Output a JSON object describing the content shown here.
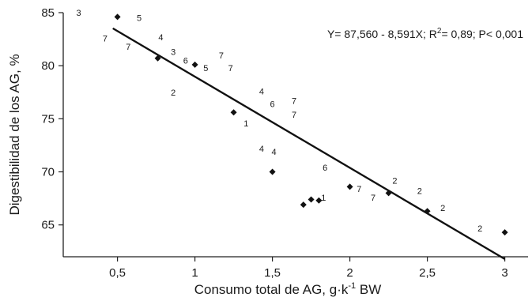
{
  "chart_data": {
    "type": "scatter",
    "xlabel": "Consumo total de AG, g·k-1 BW",
    "xlabel_parts": {
      "main": "Consumo total de AG, g·k",
      "sup": "-1",
      "tail": " BW"
    },
    "ylabel": "Digestibilidad de los AG, %",
    "xlim": [
      0.15,
      3.15
    ],
    "ylim": [
      62,
      85
    ],
    "x_ticks": [
      0.5,
      1,
      1.5,
      2,
      2.5,
      3
    ],
    "x_tick_labels": [
      "0,5",
      "1",
      "1,5",
      "2",
      "2,5",
      "3"
    ],
    "y_ticks": [
      65,
      70,
      75,
      80,
      85
    ],
    "y_tick_labels": [
      "65",
      "70",
      "75",
      "80",
      "85"
    ],
    "grid": false,
    "equation": "Y= 87,560 - 8,591X;  R",
    "equation_sup": "2",
    "equation_tail": "= 0,89;  P< 0,001",
    "regression": {
      "intercept": 87.56,
      "slope": -8.591,
      "x_range": [
        0.47,
        3.0
      ]
    },
    "points": [
      {
        "x": 0.5,
        "y": 84.6
      },
      {
        "x": 0.76,
        "y": 80.7
      },
      {
        "x": 1.0,
        "y": 80.1
      },
      {
        "x": 1.25,
        "y": 75.6
      },
      {
        "x": 1.5,
        "y": 70.0
      },
      {
        "x": 1.7,
        "y": 66.9
      },
      {
        "x": 1.75,
        "y": 67.4
      },
      {
        "x": 1.8,
        "y": 67.3
      },
      {
        "x": 2.0,
        "y": 68.6
      },
      {
        "x": 2.25,
        "y": 68.0
      },
      {
        "x": 2.5,
        "y": 66.3
      },
      {
        "x": 3.0,
        "y": 64.3
      }
    ],
    "point_labels": [
      {
        "x": 0.25,
        "y": 84.7,
        "text": "3"
      },
      {
        "x": 0.64,
        "y": 84.2,
        "text": "5"
      },
      {
        "x": 0.42,
        "y": 82.3,
        "text": "7"
      },
      {
        "x": 0.78,
        "y": 82.4,
        "text": "4"
      },
      {
        "x": 0.57,
        "y": 81.5,
        "text": "7"
      },
      {
        "x": 0.86,
        "y": 81.0,
        "text": "3"
      },
      {
        "x": 0.94,
        "y": 80.2,
        "text": "6"
      },
      {
        "x": 1.07,
        "y": 79.5,
        "text": "5"
      },
      {
        "x": 1.17,
        "y": 80.7,
        "text": "7"
      },
      {
        "x": 1.23,
        "y": 79.5,
        "text": "7"
      },
      {
        "x": 0.86,
        "y": 77.2,
        "text": "2"
      },
      {
        "x": 1.43,
        "y": 77.3,
        "text": "4"
      },
      {
        "x": 1.5,
        "y": 76.1,
        "text": "6"
      },
      {
        "x": 1.64,
        "y": 76.4,
        "text": "7"
      },
      {
        "x": 1.64,
        "y": 75.1,
        "text": "7"
      },
      {
        "x": 1.33,
        "y": 74.3,
        "text": "1"
      },
      {
        "x": 1.43,
        "y": 71.9,
        "text": "4"
      },
      {
        "x": 1.51,
        "y": 71.6,
        "text": "4"
      },
      {
        "x": 1.84,
        "y": 70.1,
        "text": "6"
      },
      {
        "x": 1.83,
        "y": 67.3,
        "text": "1"
      },
      {
        "x": 2.06,
        "y": 68.1,
        "text": "7"
      },
      {
        "x": 2.15,
        "y": 67.3,
        "text": "7"
      },
      {
        "x": 2.29,
        "y": 68.9,
        "text": "2"
      },
      {
        "x": 2.45,
        "y": 67.9,
        "text": "2"
      },
      {
        "x": 2.6,
        "y": 66.3,
        "text": "2"
      },
      {
        "x": 2.84,
        "y": 64.4,
        "text": "2"
      }
    ]
  }
}
